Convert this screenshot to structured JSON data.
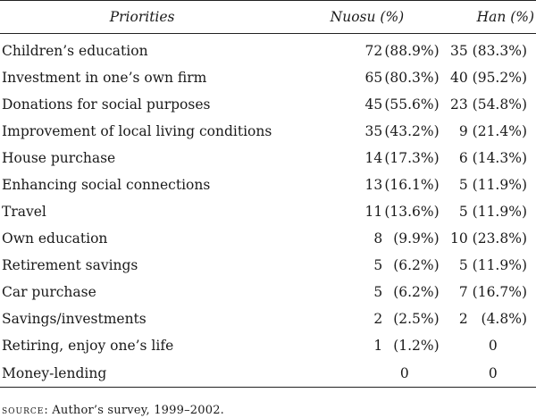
{
  "table": {
    "headers": {
      "priorities": "Priorities",
      "nuosu": "Nuosu (%)",
      "han": "Han (%)"
    },
    "rows": [
      {
        "label": "Children’s education",
        "nuosu_n": "72",
        "nuosu_pct": "(88.9%)",
        "han_n": "35",
        "han_pct": "(83.3%)"
      },
      {
        "label": "Investment in one’s own firm",
        "nuosu_n": "65",
        "nuosu_pct": "(80.3%)",
        "han_n": "40",
        "han_pct": "(95.2%)"
      },
      {
        "label": "Donations for social purposes",
        "nuosu_n": "45",
        "nuosu_pct": "(55.6%)",
        "han_n": "23",
        "han_pct": "(54.8%)"
      },
      {
        "label": "Improvement of local living conditions",
        "nuosu_n": "35",
        "nuosu_pct": "(43.2%)",
        "han_n": "9",
        "han_pct": "(21.4%)"
      },
      {
        "label": "House purchase",
        "nuosu_n": "14",
        "nuosu_pct": "(17.3%)",
        "han_n": "6",
        "han_pct": "(14.3%)"
      },
      {
        "label": "Enhancing social connections",
        "nuosu_n": "13",
        "nuosu_pct": "(16.1%)",
        "han_n": "5",
        "han_pct": "(11.9%)"
      },
      {
        "label": "Travel",
        "nuosu_n": "11",
        "nuosu_pct": "(13.6%)",
        "han_n": "5",
        "han_pct": "(11.9%)"
      },
      {
        "label": "Own education",
        "nuosu_n": "8",
        "nuosu_pct": "(9.9%)",
        "han_n": "10",
        "han_pct": "(23.8%)"
      },
      {
        "label": "Retirement savings",
        "nuosu_n": "5",
        "nuosu_pct": "(6.2%)",
        "han_n": "5",
        "han_pct": "(11.9%)"
      },
      {
        "label": "Car purchase",
        "nuosu_n": "5",
        "nuosu_pct": "(6.2%)",
        "han_n": "7",
        "han_pct": "(16.7%)"
      },
      {
        "label": "Savings/investments",
        "nuosu_n": "2",
        "nuosu_pct": "(2.5%)",
        "han_n": "2",
        "han_pct": "(4.8%)"
      }
    ],
    "zero_rows": [
      {
        "label": "Retiring, enjoy one’s life",
        "nuosu_n": "1",
        "nuosu_pct": "(1.2%)",
        "han": "0"
      },
      {
        "label": "Money-lending",
        "nuosu": "0",
        "han": "0"
      }
    ]
  },
  "source": {
    "label": "Source",
    "text": ": Author’s survey, 1999–2002."
  }
}
